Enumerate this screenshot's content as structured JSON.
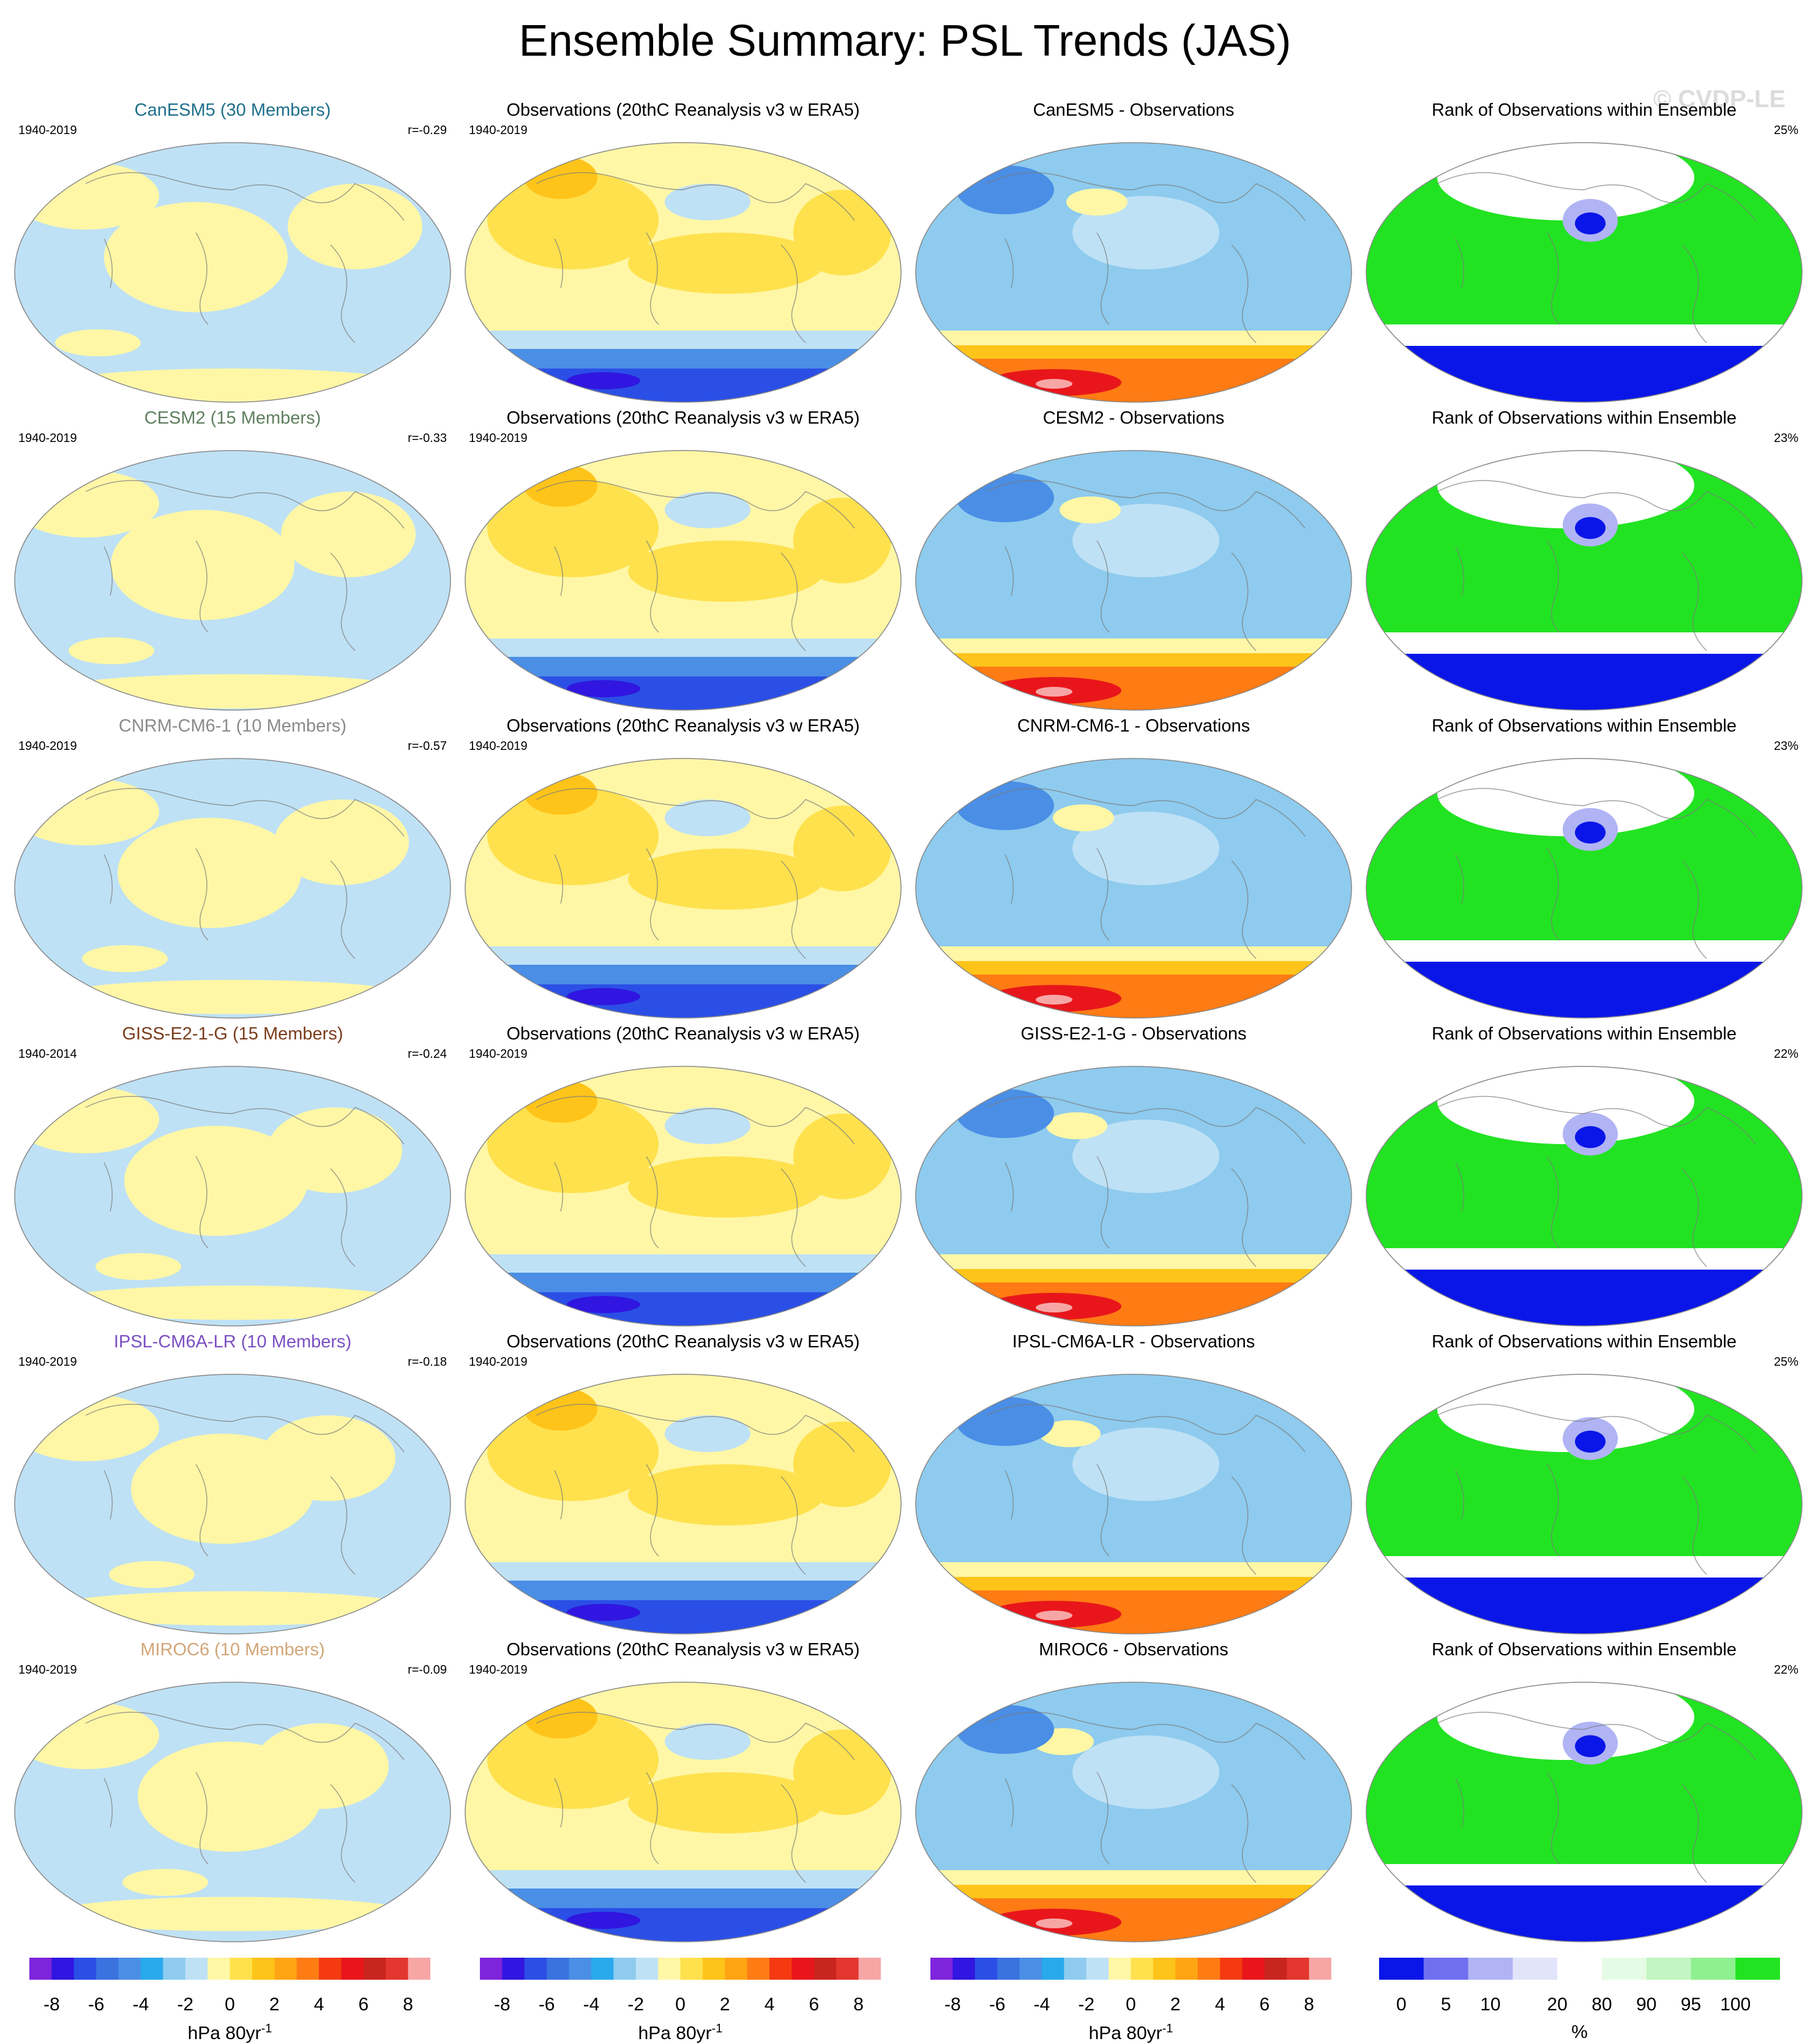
{
  "title": "Ensemble Summary: PSL Trends (JAS)",
  "watermark": "© CVDP-LE",
  "rows": [
    {
      "model_title": "CanESM5 (30 Members)",
      "model_color": "#1f6f8b",
      "model_period": "1940-2019",
      "model_r": "r=-0.29",
      "obs_title": "Observations (20thC Reanalysis v3 w ERA5)",
      "obs_period": "1940-2019",
      "diff_title": "CanESM5 - Observations",
      "rank_title": "Rank of Observations within Ensemble",
      "rank_pct": "25%"
    },
    {
      "model_title": "CESM2 (15 Members)",
      "model_color": "#5f7f5f",
      "model_period": "1940-2019",
      "model_r": "r=-0.33",
      "obs_title": "Observations (20thC Reanalysis v3 w ERA5)",
      "obs_period": "1940-2019",
      "diff_title": "CESM2 - Observations",
      "rank_title": "Rank of Observations within Ensemble",
      "rank_pct": "23%"
    },
    {
      "model_title": "CNRM-CM6-1 (10 Members)",
      "model_color": "#8a8a8a",
      "model_period": "1940-2019",
      "model_r": "r=-0.57",
      "obs_title": "Observations (20thC Reanalysis v3 w ERA5)",
      "obs_period": "1940-2019",
      "diff_title": "CNRM-CM6-1 - Observations",
      "rank_title": "Rank of Observations within Ensemble",
      "rank_pct": "23%"
    },
    {
      "model_title": "GISS-E2-1-G (15 Members)",
      "model_color": "#7a3b1a",
      "model_period": "1940-2014",
      "model_r": "r=-0.24",
      "obs_title": "Observations (20thC Reanalysis v3 w ERA5)",
      "obs_period": "1940-2019",
      "diff_title": "GISS-E2-1-G - Observations",
      "rank_title": "Rank of Observations within Ensemble",
      "rank_pct": "22%"
    },
    {
      "model_title": "IPSL-CM6A-LR (10 Members)",
      "model_color": "#7b4fc4",
      "model_period": "1940-2019",
      "model_r": "r=-0.18",
      "obs_title": "Observations (20thC Reanalysis v3 w ERA5)",
      "obs_period": "1940-2019",
      "diff_title": "IPSL-CM6A-LR - Observations",
      "rank_title": "Rank of Observations within Ensemble",
      "rank_pct": "25%"
    },
    {
      "model_title": "MIROC6 (10 Members)",
      "model_color": "#d2a679",
      "model_period": "1940-2019",
      "model_r": "r=-0.09",
      "obs_title": "Observations (20thC Reanalysis v3 w ERA5)",
      "obs_period": "1940-2019",
      "diff_title": "MIROC6 - Observations",
      "rank_title": "Rank of Observations within Ensemble",
      "rank_pct": "22%"
    }
  ],
  "colorbars": {
    "psl": {
      "colors": [
        "#7e24dc",
        "#3016e0",
        "#2b4fe6",
        "#3a72e0",
        "#4a8ee6",
        "#28a9ee",
        "#8ecbee",
        "#bfe1f5",
        "#fff7a6",
        "#ffe14d",
        "#ffc41a",
        "#ffa514",
        "#ff7b14",
        "#f53a12",
        "#e8161b",
        "#c9251f",
        "#e3362e",
        "#f7a6a6"
      ],
      "ticks": [
        "-8",
        "-6",
        "-4",
        "-2",
        "0",
        "2",
        "4",
        "6",
        "8"
      ],
      "unit": "hPa 80yr",
      "unit_sup": "-1"
    },
    "rank": {
      "colors": [
        "#0a16e8",
        "#6f6ff0",
        "#b0b4f4",
        "#e2e4fa",
        "#ffffff",
        "#e6fbe6",
        "#c2f5c2",
        "#8ff08f",
        "#22e322"
      ],
      "ticks": [
        "0",
        "5",
        "10",
        "20",
        "80",
        "90",
        "95",
        "100"
      ],
      "unit": "%"
    }
  }
}
